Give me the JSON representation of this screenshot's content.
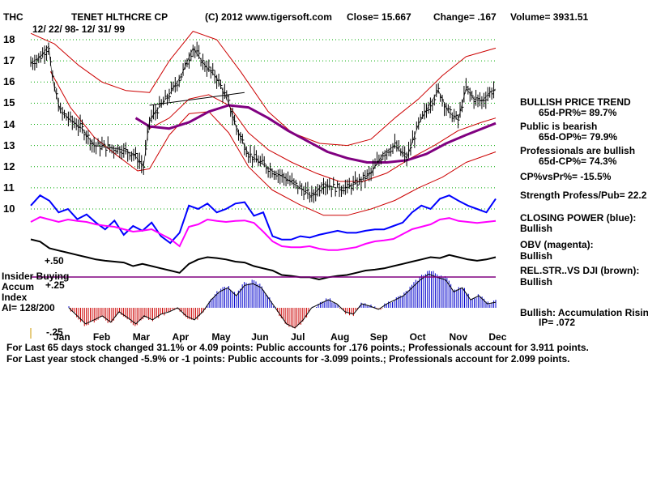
{
  "header": {
    "ticker": "THC",
    "company": "TENET HLTHCRE CP",
    "copyright": "(C) 2012 www.tigersoft.com",
    "close": "Close=  15.667",
    "change": "Change= .167",
    "volume": "Volume= 3931.51",
    "date_range": "12/ 22/ 98- 12/ 31/ 99"
  },
  "right_panel": {
    "trend_title": "BULLISH PRICE TREND",
    "pr_line": "65d-PR%= 89.7%",
    "public_line": "Public is bearish",
    "op_line": "65d-OP%= 79.9%",
    "pros_line": "Professionals are bullish",
    "cp_line": "65d-CP%= 74.3%",
    "cpvspr": "CP%vsPr%= -15.5%",
    "strength": "Strength Profess/Pub= 22.2",
    "cp_title": "CLOSING POWER (blue):",
    "cp_status": "Bullish",
    "obv_title": "OBV (magenta):",
    "obv_status": "Bullish",
    "rel_title": "REL.STR..VS DJI (brown):",
    "rel_status": "Bullish",
    "accum_title": "Bullish: Accumulation Rising",
    "ip": "IP=  .072"
  },
  "indicator_labels": {
    "plus50": "+.50",
    "insider": "Insider Buying",
    "accum": "Accum",
    "index": "Index",
    "ai": "AI= 128/200",
    "plus25": "+.25",
    "minus25": "-.25"
  },
  "footer": {
    "line1": "For Last 65 days stock changed  31.1% or  4.09 points:  Public accounts for  .176 points.;  Professionals account for  3.911 points.",
    "line2": "For Last year stock changed -5.9% or -1 points:  Public accounts for -3.099 points.;  Professionals account for  2.099 points."
  },
  "colors": {
    "price": "#000000",
    "bands": "#cc0000",
    "ma200": "#800080",
    "closing_power": "#0000ff",
    "obv": "#ff00ff",
    "rel_str": "#000000",
    "accum_pos": "#0000cc",
    "accum_neg": "#cc0000",
    "insider": "#800080",
    "grid": "#00aa00"
  },
  "chart_data": {
    "type": "line",
    "title": "TENET HLTHCRE CP (THC)",
    "period": "12/22/98 - 12/31/99",
    "ylim": [
      10,
      18
    ],
    "y_ticks": [
      "10",
      "11",
      "12",
      "13",
      "14",
      "15",
      "16",
      "17",
      "18"
    ],
    "x_ticks": [
      "Jan",
      "Feb",
      "Mar",
      "Apr",
      "May",
      "Jun",
      "Jul",
      "Aug",
      "Sep",
      "Oct",
      "Nov",
      "Dec"
    ],
    "price_series": [
      {
        "m": 0.0,
        "v": 16.9
      },
      {
        "m": 0.25,
        "v": 17.2
      },
      {
        "m": 0.45,
        "v": 17.7
      },
      {
        "m": 0.55,
        "v": 16.1
      },
      {
        "m": 0.75,
        "v": 14.6
      },
      {
        "m": 1.0,
        "v": 14.2
      },
      {
        "m": 1.3,
        "v": 13.8
      },
      {
        "m": 1.6,
        "v": 13.0
      },
      {
        "m": 2.0,
        "v": 12.9
      },
      {
        "m": 2.3,
        "v": 12.8
      },
      {
        "m": 2.6,
        "v": 12.6
      },
      {
        "m": 2.85,
        "v": 12.0
      },
      {
        "m": 3.0,
        "v": 14.2
      },
      {
        "m": 3.2,
        "v": 14.7
      },
      {
        "m": 3.5,
        "v": 15.4
      },
      {
        "m": 3.8,
        "v": 16.3
      },
      {
        "m": 4.1,
        "v": 17.6
      },
      {
        "m": 4.4,
        "v": 16.8
      },
      {
        "m": 4.7,
        "v": 16.2
      },
      {
        "m": 5.0,
        "v": 15.0
      },
      {
        "m": 5.2,
        "v": 13.8
      },
      {
        "m": 5.5,
        "v": 12.6
      },
      {
        "m": 5.8,
        "v": 12.2
      },
      {
        "m": 6.1,
        "v": 11.8
      },
      {
        "m": 6.4,
        "v": 11.5
      },
      {
        "m": 6.8,
        "v": 11.0
      },
      {
        "m": 7.1,
        "v": 10.6
      },
      {
        "m": 7.4,
        "v": 11.2
      },
      {
        "m": 7.7,
        "v": 11.0
      },
      {
        "m": 8.0,
        "v": 11.0
      },
      {
        "m": 8.3,
        "v": 11.3
      },
      {
        "m": 8.6,
        "v": 11.7
      },
      {
        "m": 8.9,
        "v": 12.6
      },
      {
        "m": 9.2,
        "v": 13.0
      },
      {
        "m": 9.5,
        "v": 12.4
      },
      {
        "m": 9.8,
        "v": 14.0
      },
      {
        "m": 10.1,
        "v": 15.0
      },
      {
        "m": 10.3,
        "v": 15.6
      },
      {
        "m": 10.55,
        "v": 14.6
      },
      {
        "m": 10.8,
        "v": 14.2
      },
      {
        "m": 11.0,
        "v": 15.7
      },
      {
        "m": 11.2,
        "v": 15.2
      },
      {
        "m": 11.4,
        "v": 15.1
      },
      {
        "m": 11.6,
        "v": 15.5
      },
      {
        "m": 11.75,
        "v": 15.667
      }
    ],
    "upper_band": [
      {
        "m": 0.0,
        "v": 18.3
      },
      {
        "m": 0.6,
        "v": 17.8
      },
      {
        "m": 1.2,
        "v": 16.8
      },
      {
        "m": 1.8,
        "v": 16.0
      },
      {
        "m": 2.4,
        "v": 15.6
      },
      {
        "m": 3.0,
        "v": 15.5
      },
      {
        "m": 3.5,
        "v": 17.0
      },
      {
        "m": 4.1,
        "v": 18.4
      },
      {
        "m": 4.7,
        "v": 18.0
      },
      {
        "m": 5.3,
        "v": 16.5
      },
      {
        "m": 6.0,
        "v": 14.6
      },
      {
        "m": 6.6,
        "v": 13.6
      },
      {
        "m": 7.3,
        "v": 13.1
      },
      {
        "m": 8.0,
        "v": 13.0
      },
      {
        "m": 8.6,
        "v": 13.3
      },
      {
        "m": 9.2,
        "v": 14.3
      },
      {
        "m": 9.8,
        "v": 15.2
      },
      {
        "m": 10.4,
        "v": 16.3
      },
      {
        "m": 11.0,
        "v": 17.2
      },
      {
        "m": 11.75,
        "v": 17.6
      }
    ],
    "lower_band": [
      {
        "m": 0.5,
        "v": 16.5
      },
      {
        "m": 1.0,
        "v": 14.8
      },
      {
        "m": 1.6,
        "v": 13.4
      },
      {
        "m": 2.2,
        "v": 12.5
      },
      {
        "m": 2.7,
        "v": 11.8
      },
      {
        "m": 3.0,
        "v": 11.9
      },
      {
        "m": 3.5,
        "v": 13.5
      },
      {
        "m": 4.0,
        "v": 14.5
      },
      {
        "m": 4.5,
        "v": 14.6
      },
      {
        "m": 5.0,
        "v": 13.6
      },
      {
        "m": 5.5,
        "v": 12.0
      },
      {
        "m": 6.1,
        "v": 10.9
      },
      {
        "m": 6.8,
        "v": 10.2
      },
      {
        "m": 7.4,
        "v": 9.7
      },
      {
        "m": 8.0,
        "v": 9.7
      },
      {
        "m": 8.6,
        "v": 10.0
      },
      {
        "m": 9.2,
        "v": 10.4
      },
      {
        "m": 9.8,
        "v": 11.0
      },
      {
        "m": 10.4,
        "v": 11.5
      },
      {
        "m": 11.0,
        "v": 12.2
      },
      {
        "m": 11.75,
        "v": 12.7
      }
    ],
    "inner_band": [
      {
        "m": 3.0,
        "v": 13.8
      },
      {
        "m": 3.5,
        "v": 14.3
      },
      {
        "m": 4.0,
        "v": 15.2
      },
      {
        "m": 4.5,
        "v": 15.4
      },
      {
        "m": 5.0,
        "v": 14.9
      },
      {
        "m": 5.5,
        "v": 13.6
      },
      {
        "m": 6.0,
        "v": 12.8
      },
      {
        "m": 6.6,
        "v": 12.2
      },
      {
        "m": 7.2,
        "v": 11.7
      },
      {
        "m": 7.8,
        "v": 11.3
      },
      {
        "m": 8.4,
        "v": 11.3
      },
      {
        "m": 9.0,
        "v": 11.7
      },
      {
        "m": 9.6,
        "v": 12.4
      },
      {
        "m": 10.2,
        "v": 13.0
      },
      {
        "m": 10.8,
        "v": 13.7
      },
      {
        "m": 11.4,
        "v": 14.1
      },
      {
        "m": 11.75,
        "v": 14.3
      }
    ],
    "ma200": [
      {
        "m": 2.65,
        "v": 14.3
      },
      {
        "m": 3.0,
        "v": 13.9
      },
      {
        "m": 3.5,
        "v": 13.8
      },
      {
        "m": 4.0,
        "v": 14.1
      },
      {
        "m": 4.5,
        "v": 14.6
      },
      {
        "m": 5.0,
        "v": 14.9
      },
      {
        "m": 5.5,
        "v": 14.8
      },
      {
        "m": 6.0,
        "v": 14.3
      },
      {
        "m": 6.5,
        "v": 13.7
      },
      {
        "m": 7.0,
        "v": 13.2
      },
      {
        "m": 7.5,
        "v": 12.7
      },
      {
        "m": 8.0,
        "v": 12.4
      },
      {
        "m": 8.5,
        "v": 12.2
      },
      {
        "m": 9.0,
        "v": 12.2
      },
      {
        "m": 9.5,
        "v": 12.3
      },
      {
        "m": 10.0,
        "v": 12.6
      },
      {
        "m": 10.5,
        "v": 13.1
      },
      {
        "m": 11.0,
        "v": 13.5
      },
      {
        "m": 11.75,
        "v": 14.05
      }
    ],
    "trendline": [
      {
        "m": 3.0,
        "v": 14.9
      },
      {
        "m": 5.4,
        "v": 15.5
      }
    ],
    "closing_power": [
      0.55,
      0.7,
      0.62,
      0.45,
      0.5,
      0.35,
      0.42,
      0.3,
      0.2,
      0.33,
      0.12,
      0.25,
      0.18,
      0.3,
      0.1,
      0.0,
      0.15,
      0.55,
      0.5,
      0.58,
      0.45,
      0.5,
      0.58,
      0.6,
      0.4,
      0.45,
      0.1,
      0.05,
      0.05,
      0.1,
      0.08,
      0.12,
      0.15,
      0.18,
      0.15,
      0.15,
      0.18,
      0.2,
      0.2,
      0.25,
      0.3,
      0.45,
      0.55,
      0.5,
      0.65,
      0.7,
      0.62,
      0.55,
      0.5,
      0.45,
      0.65
    ],
    "obv": [
      0.7,
      0.8,
      0.75,
      0.7,
      0.75,
      0.72,
      0.7,
      0.65,
      0.62,
      0.6,
      0.55,
      0.5,
      0.52,
      0.55,
      0.45,
      0.35,
      0.2,
      0.6,
      0.65,
      0.75,
      0.72,
      0.7,
      0.72,
      0.73,
      0.68,
      0.5,
      0.3,
      0.2,
      0.18,
      0.18,
      0.2,
      0.15,
      0.12,
      0.12,
      0.15,
      0.18,
      0.25,
      0.3,
      0.32,
      0.35,
      0.45,
      0.55,
      0.6,
      0.65,
      0.75,
      0.78,
      0.72,
      0.7,
      0.68,
      0.7,
      0.72
    ],
    "rel_str": [
      0.9,
      0.85,
      0.7,
      0.65,
      0.6,
      0.55,
      0.5,
      0.45,
      0.42,
      0.4,
      0.38,
      0.3,
      0.35,
      0.3,
      0.25,
      0.2,
      0.15,
      0.35,
      0.45,
      0.5,
      0.48,
      0.45,
      0.4,
      0.38,
      0.3,
      0.25,
      0.2,
      0.1,
      0.08,
      0.05,
      0.05,
      0.0,
      0.05,
      0.08,
      0.1,
      0.15,
      0.2,
      0.22,
      0.25,
      0.3,
      0.35,
      0.4,
      0.45,
      0.5,
      0.48,
      0.55,
      0.5,
      0.45,
      0.42,
      0.45,
      0.5
    ],
    "accum_index": [
      0.0,
      -0.1,
      -0.2,
      -0.15,
      -0.1,
      -0.18,
      -0.05,
      -0.12,
      -0.2,
      -0.1,
      -0.15,
      -0.08,
      -0.05,
      0.0,
      -0.1,
      -0.15,
      -0.05,
      0.1,
      0.2,
      0.25,
      0.15,
      0.28,
      0.3,
      0.25,
      0.1,
      -0.05,
      -0.2,
      -0.25,
      -0.15,
      0.0,
      0.05,
      0.1,
      0.05,
      -0.05,
      -0.08,
      0.05,
      0.02,
      -0.02,
      0.05,
      0.1,
      0.15,
      0.25,
      0.35,
      0.42,
      0.38,
      0.35,
      0.2,
      0.25,
      0.1,
      0.15,
      0.05,
      0.07
    ]
  }
}
